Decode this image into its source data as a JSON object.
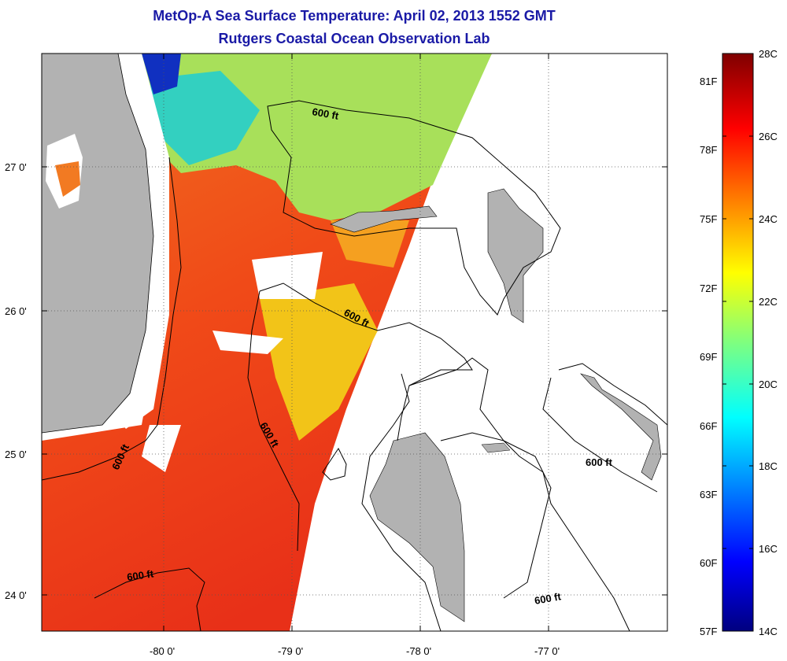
{
  "titles": {
    "line1": "MetOp-A Sea Surface Temperature:  April 02, 2013 1552 GMT",
    "line2": "Rutgers Coastal Ocean Observation Lab"
  },
  "colors": {
    "title": "#1a1aa6",
    "land": "#b2b2b2",
    "no_data": "#ffffff",
    "contour": "#000000"
  },
  "map": {
    "lon_labels": [
      "-80 0'",
      "-79 0'",
      "-78 0'",
      "-77 0'"
    ],
    "lat_labels": [
      "27 0'",
      "26 0'",
      "25 0'",
      "24 0'"
    ],
    "contour_labels": [
      "600 ft",
      "600 ft",
      "600 ft",
      "600 ft",
      "600 ft",
      "600 ft"
    ]
  },
  "colorbar": {
    "celsius": [
      "28C",
      "26C",
      "24C",
      "22C",
      "20C",
      "18C",
      "16C",
      "14C"
    ],
    "fahrenheit": [
      "81F",
      "78F",
      "75F",
      "72F",
      "69F",
      "66F",
      "63F",
      "60F",
      "57F"
    ]
  }
}
